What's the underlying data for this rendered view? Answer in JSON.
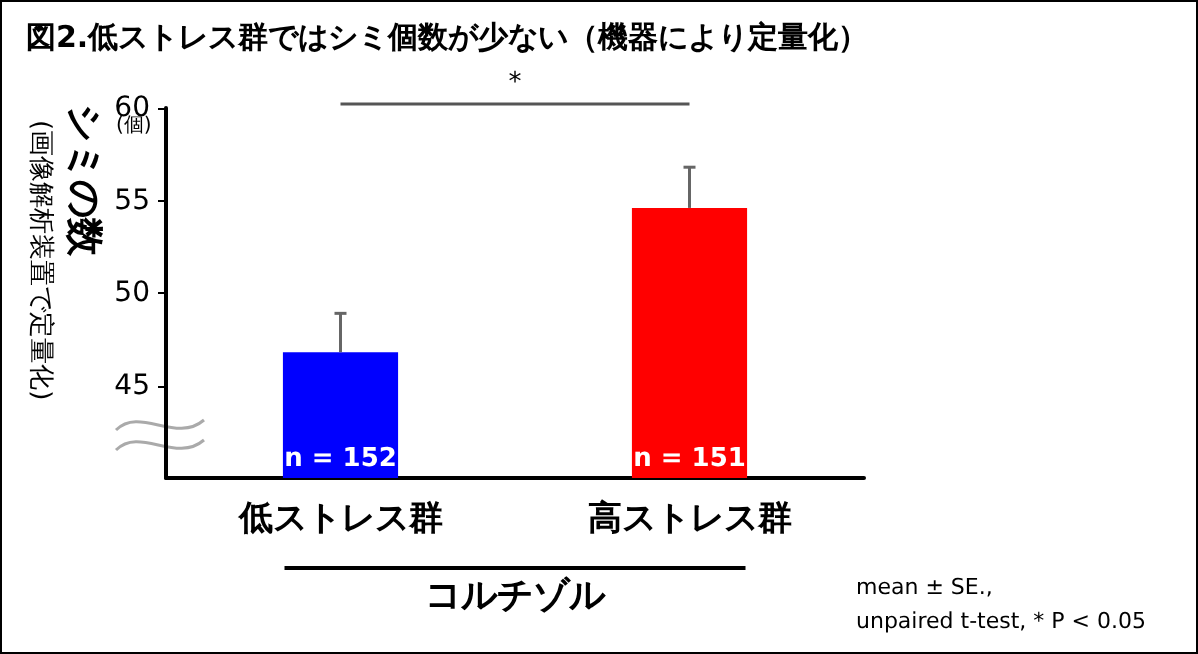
{
  "chart_data": {
    "type": "bar",
    "title": "図2.低ストレス群ではシミ個数が少ない（機器により定量化）",
    "xlabel": "コルチゾル",
    "ylabel": "シミの数",
    "categories": [
      "低ストレス群",
      "高ストレス群"
    ],
    "values": [
      46.8,
      54.6
    ],
    "colors": [
      "#0000ff",
      "#ff0000"
    ],
    "errors": [
      2.1,
      2.2
    ],
    "ylim": [
      40,
      60
    ],
    "yticks": [
      45,
      50,
      55,
      60
    ],
    "grid": false,
    "annotations": [
      "(個)",
      "(画像解析装置で定量化)",
      "*",
      {
        "text": "n = 152",
        "x": "低ストレス群",
        "y": 40
      },
      {
        "text": "n = 151",
        "x": "高ストレス群",
        "y": 40
      },
      "mean ± SE.,",
      "unpaired t-test, * P < 0.05"
    ]
  }
}
